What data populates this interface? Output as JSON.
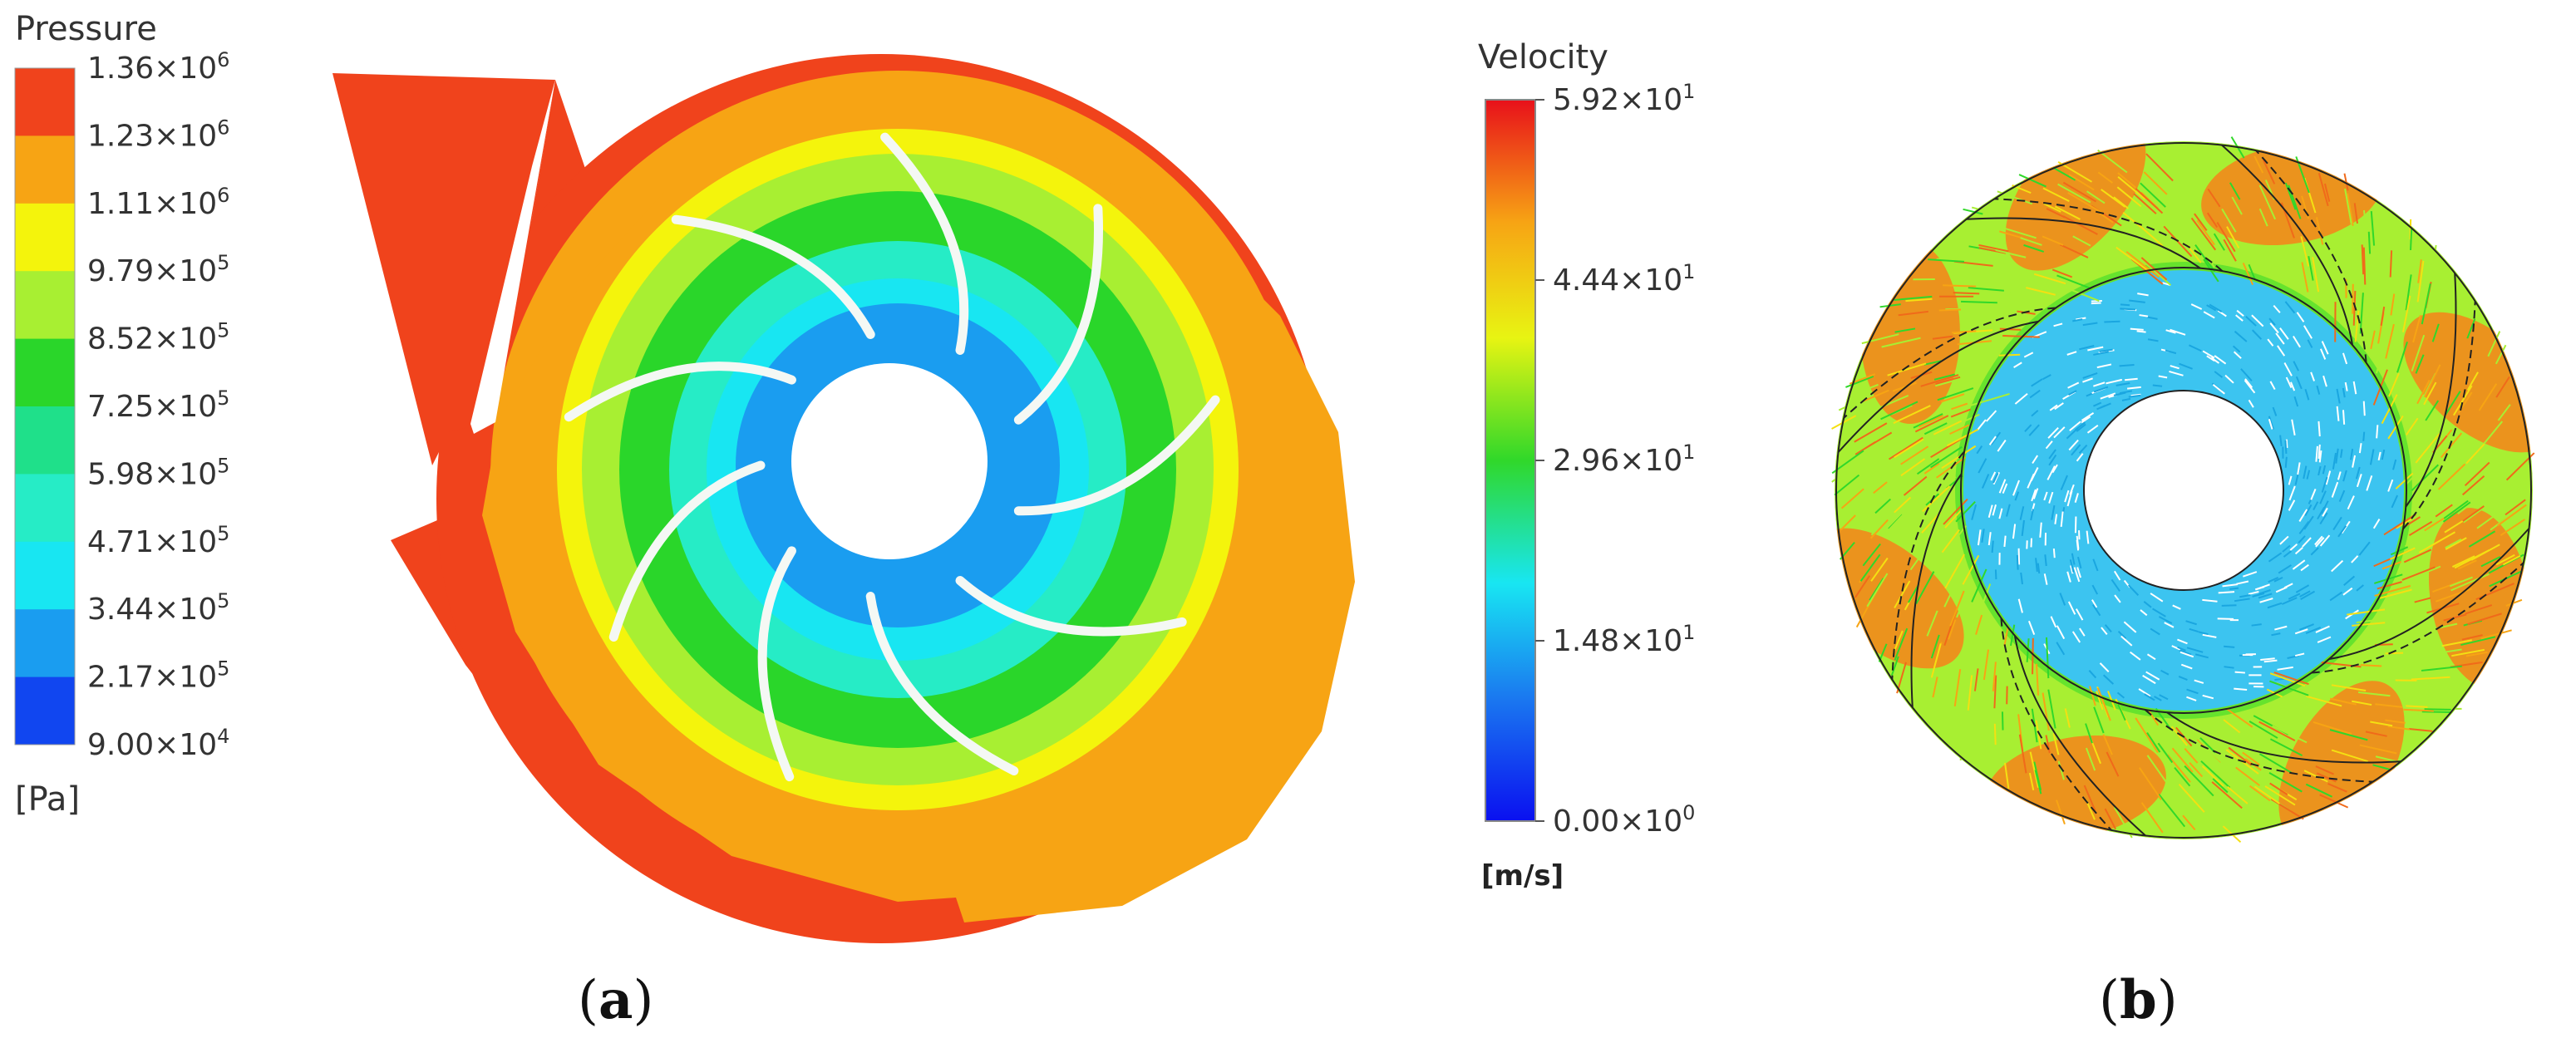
{
  "panel_a": {
    "legend": {
      "title": "Pressure",
      "unit": "[Pa]",
      "labels": [
        {
          "mantissa": "1.36",
          "exp": "6"
        },
        {
          "mantissa": "1.23",
          "exp": "6"
        },
        {
          "mantissa": "1.11",
          "exp": "6"
        },
        {
          "mantissa": "9.79",
          "exp": "5"
        },
        {
          "mantissa": "8.52",
          "exp": "5"
        },
        {
          "mantissa": "7.25",
          "exp": "5"
        },
        {
          "mantissa": "5.98",
          "exp": "5"
        },
        {
          "mantissa": "4.71",
          "exp": "5"
        },
        {
          "mantissa": "3.44",
          "exp": "5"
        },
        {
          "mantissa": "2.17",
          "exp": "5"
        },
        {
          "mantissa": "9.00",
          "exp": "4"
        }
      ],
      "band_colors": [
        "#f0431c",
        "#f7a414",
        "#f4f40c",
        "#a8ef32",
        "#2ad62a",
        "#1fe08a",
        "#26ecc6",
        "#18e6f2",
        "#1a9df0",
        "#1146f0"
      ]
    },
    "label_open": "(",
    "label_letter": "a",
    "label_close": ")"
  },
  "panel_b": {
    "legend": {
      "title": "Velocity",
      "unit": "[m/s]",
      "labels": [
        {
          "mantissa": "5.92",
          "exp": "1"
        },
        {
          "mantissa": "4.44",
          "exp": "1"
        },
        {
          "mantissa": "2.96",
          "exp": "1"
        },
        {
          "mantissa": "1.48",
          "exp": "1"
        },
        {
          "mantissa": "0.00",
          "exp": "0"
        }
      ],
      "gradient_colors": [
        "#e8101a",
        "#f7a414",
        "#e8f412",
        "#30d82a",
        "#18e6f2",
        "#1a78f0",
        "#0a10f0"
      ]
    },
    "label_open": "(",
    "label_letter": "b",
    "label_close": ")"
  }
}
